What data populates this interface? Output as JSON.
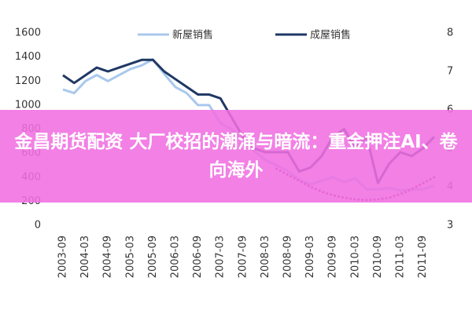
{
  "chart_data": {
    "type": "line",
    "x": [
      "2003-09",
      null,
      "2004-03",
      null,
      "2004-09",
      null,
      "2005-03",
      null,
      "2005-09",
      null,
      "2006-03",
      null,
      "2006-09",
      null,
      "2007-03",
      null,
      "2007-09",
      null,
      "2008-03",
      null,
      "2008-09",
      null,
      "2009-03",
      null,
      "2009-09",
      null,
      "2010-03",
      null,
      "2010-09",
      null,
      "2011-03",
      null,
      "2011-09",
      null
    ],
    "series": [
      {
        "name": "新屋销售",
        "color": "#a9c8ec",
        "axis": "y",
        "values": [
          1130,
          1100,
          1200,
          1250,
          1200,
          1250,
          1300,
          1330,
          1380,
          1260,
          1150,
          1100,
          1000,
          1000,
          850,
          800,
          700,
          620,
          540,
          500,
          450,
          380,
          340,
          370,
          400,
          360,
          390,
          300,
          300,
          310,
          290,
          300,
          300,
          330
        ]
      },
      {
        "name": "成屋销售",
        "color": "#1f3864",
        "axis": "y2",
        "values": [
          6.9,
          6.7,
          6.9,
          7.1,
          7.0,
          7.1,
          7.2,
          7.3,
          7.3,
          7.0,
          6.8,
          6.6,
          6.4,
          6.4,
          6.3,
          5.8,
          5.3,
          5.0,
          4.9,
          4.9,
          4.9,
          4.4,
          4.5,
          4.8,
          5.3,
          5.5,
          5.0,
          5.3,
          4.1,
          4.6,
          4.9,
          4.8,
          5.0,
          5.3
        ]
      },
      {
        "color": "#a0307a",
        "axis": "y",
        "style": "dotted",
        "values": [
          null,
          null,
          null,
          null,
          null,
          null,
          null,
          null,
          null,
          null,
          null,
          null,
          null,
          null,
          null,
          null,
          null,
          null,
          null,
          470,
          420,
          370,
          320,
          280,
          250,
          230,
          215,
          210,
          215,
          230,
          260,
          300,
          350,
          400
        ]
      }
    ],
    "ylim": [
      0,
      1600
    ],
    "yticks": [
      0,
      200,
      400,
      600,
      800,
      1000,
      1200,
      1400,
      1600
    ],
    "y2lim": [
      3,
      8
    ],
    "y2ticks": [
      3,
      4,
      5,
      6,
      7,
      8
    ],
    "legend": "top",
    "grid": false
  },
  "overlay_text": "金昌期货配资 大厂校招的潮涌与暗流：重金押注AI、卷向海外"
}
